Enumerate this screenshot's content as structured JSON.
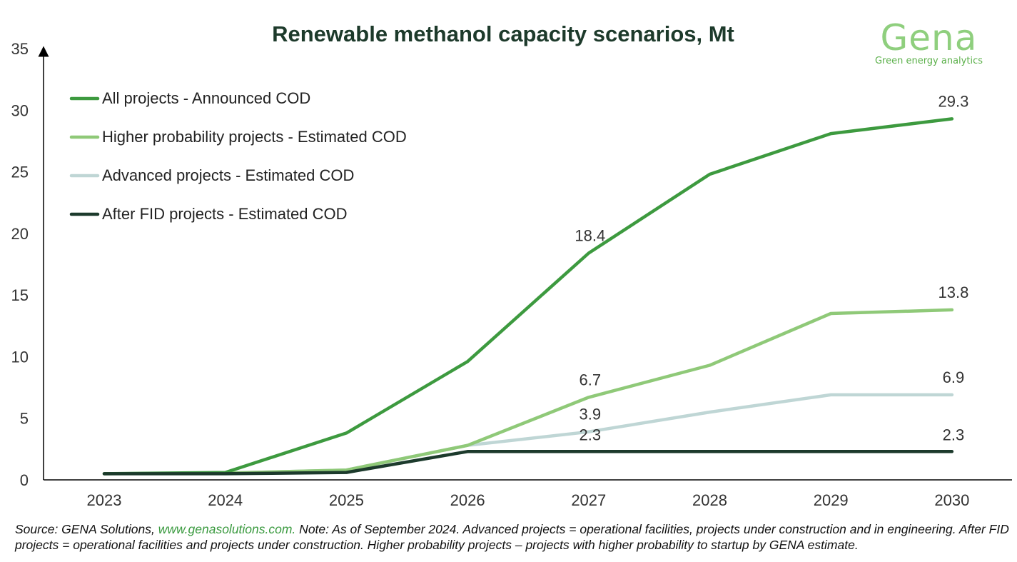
{
  "chart_data": {
    "type": "line",
    "title": "Renewable methanol capacity scenarios, Mt",
    "xlabel": "",
    "ylabel": "",
    "categories": [
      "2023",
      "2024",
      "2025",
      "2026",
      "2027",
      "2028",
      "2029",
      "2030"
    ],
    "ylim": [
      0,
      35
    ],
    "yticks": [
      "0",
      "5",
      "10",
      "15",
      "20",
      "25",
      "30",
      "35"
    ],
    "grid": false,
    "legend_position": "top-left",
    "series": [
      {
        "name": "All projects - Announced COD",
        "color": "#3d9a3f",
        "values": [
          0.5,
          0.6,
          3.8,
          9.6,
          18.4,
          24.8,
          28.1,
          29.3
        ],
        "labels": [
          {
            "index": 4,
            "text": "18.4"
          },
          {
            "index": 7,
            "text": "29.3"
          }
        ]
      },
      {
        "name": "Higher probability projects - Estimated COD",
        "color": "#8fc978",
        "values": [
          0.5,
          0.55,
          0.8,
          2.8,
          6.7,
          9.3,
          13.5,
          13.8
        ],
        "labels": [
          {
            "index": 4,
            "text": "6.7"
          },
          {
            "index": 7,
            "text": "13.8"
          }
        ]
      },
      {
        "name": "Advanced projects - Estimated COD",
        "color": "#bfd6d5",
        "values": [
          0.5,
          0.55,
          0.8,
          2.8,
          3.9,
          5.5,
          6.9,
          6.9
        ],
        "labels": [
          {
            "index": 4,
            "text": "3.9"
          },
          {
            "index": 7,
            "text": "6.9"
          }
        ]
      },
      {
        "name": "After FID projects - Estimated COD",
        "color": "#1c3a2c",
        "values": [
          0.5,
          0.5,
          0.6,
          2.3,
          2.3,
          2.3,
          2.3,
          2.3
        ],
        "labels": [
          {
            "index": 4,
            "text": "2.3"
          },
          {
            "index": 7,
            "text": "2.3"
          }
        ]
      }
    ]
  },
  "logo": {
    "word": "Gena",
    "tagline": "Green energy analytics",
    "color": "#8fcf7e"
  },
  "source": {
    "prefix": "Source: GENA Solutions, ",
    "link": "www.genasolutions.com.",
    "rest": " Note: As of September 2024. Advanced projects = operational facilities, projects under construction and in engineering. After FID projects = operational facilities and projects under construction. Higher probability projects – projects with higher probability to startup by GENA estimate."
  }
}
